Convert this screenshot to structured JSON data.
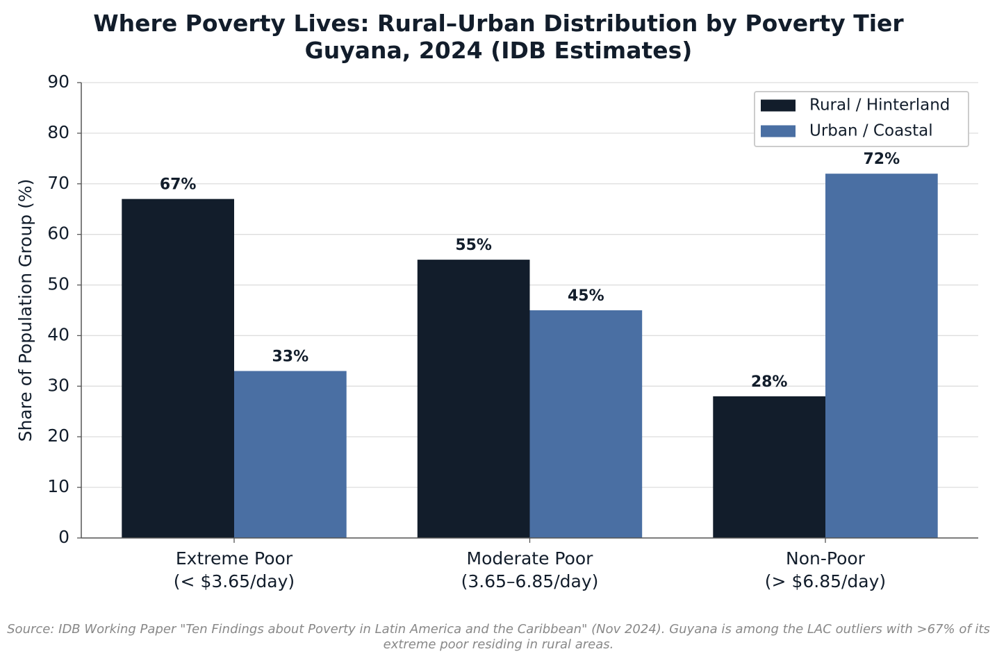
{
  "chart_data": {
    "type": "bar",
    "title": "Where Poverty Lives: Rural–Urban Distribution by Poverty Tier\nGuyana, 2024 (IDB Estimates)",
    "y_label": "Share of Population Group (%)",
    "categories": [
      "Extreme Poor\n(< $3.65/day)",
      "Moderate Poor\n(3.65–6.85/day)",
      "Non-Poor\n(> $6.85/day)"
    ],
    "series": [
      {
        "name": "Rural / Hinterland",
        "color": "#121d2b",
        "values": [
          67,
          55,
          28
        ],
        "value_labels": [
          "67%",
          "55%",
          "28%"
        ]
      },
      {
        "name": "Urban / Coastal",
        "color": "#4a6fa3",
        "values": [
          33,
          45,
          72
        ],
        "value_labels": [
          "33%",
          "45%",
          "72%"
        ]
      }
    ],
    "ylim": [
      0,
      90
    ],
    "yticks": [
      0,
      10,
      20,
      30,
      40,
      50,
      60,
      70,
      80,
      90
    ],
    "grid": true,
    "legend": "upper right",
    "source": "Source: IDB Working Paper \"Ten Findings about Poverty in Latin America and the Caribbean\" (Nov 2024). Guyana is among the LAC outliers with >67% of its extreme poor residing in rural areas."
  }
}
